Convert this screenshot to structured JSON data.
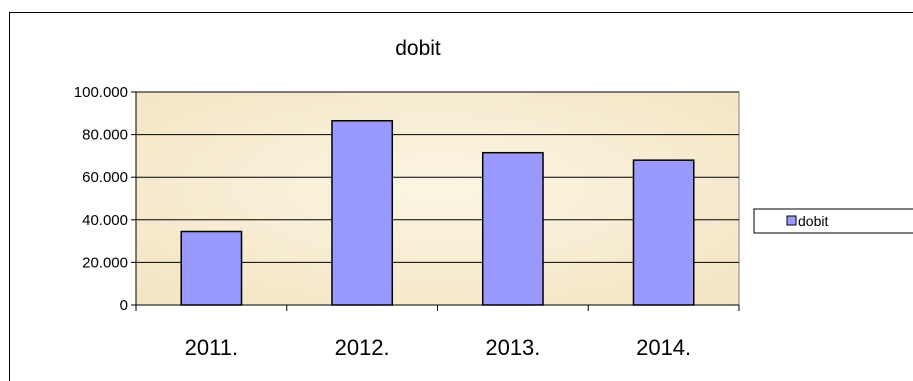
{
  "chart_data": {
    "type": "bar",
    "title": "dobit",
    "xlabel": "",
    "ylabel": "",
    "categories": [
      "2011.",
      "2012.",
      "2013.",
      "2014."
    ],
    "series": [
      {
        "name": "dobit",
        "values": [
          34500,
          86500,
          71500,
          68000
        ]
      }
    ],
    "ylim": [
      0,
      100000
    ],
    "yticks": [
      0,
      20000,
      40000,
      60000,
      80000,
      100000
    ],
    "ytick_labels": [
      "0",
      "20.000",
      "40.000",
      "60.000",
      "80.000",
      "100.000"
    ],
    "grid": true,
    "legend_position": "right",
    "colors": {
      "bar_fill": "#9999ff",
      "bar_stroke": "#000000",
      "plot_background": "#f6ebcf",
      "grid": "#000000"
    }
  }
}
